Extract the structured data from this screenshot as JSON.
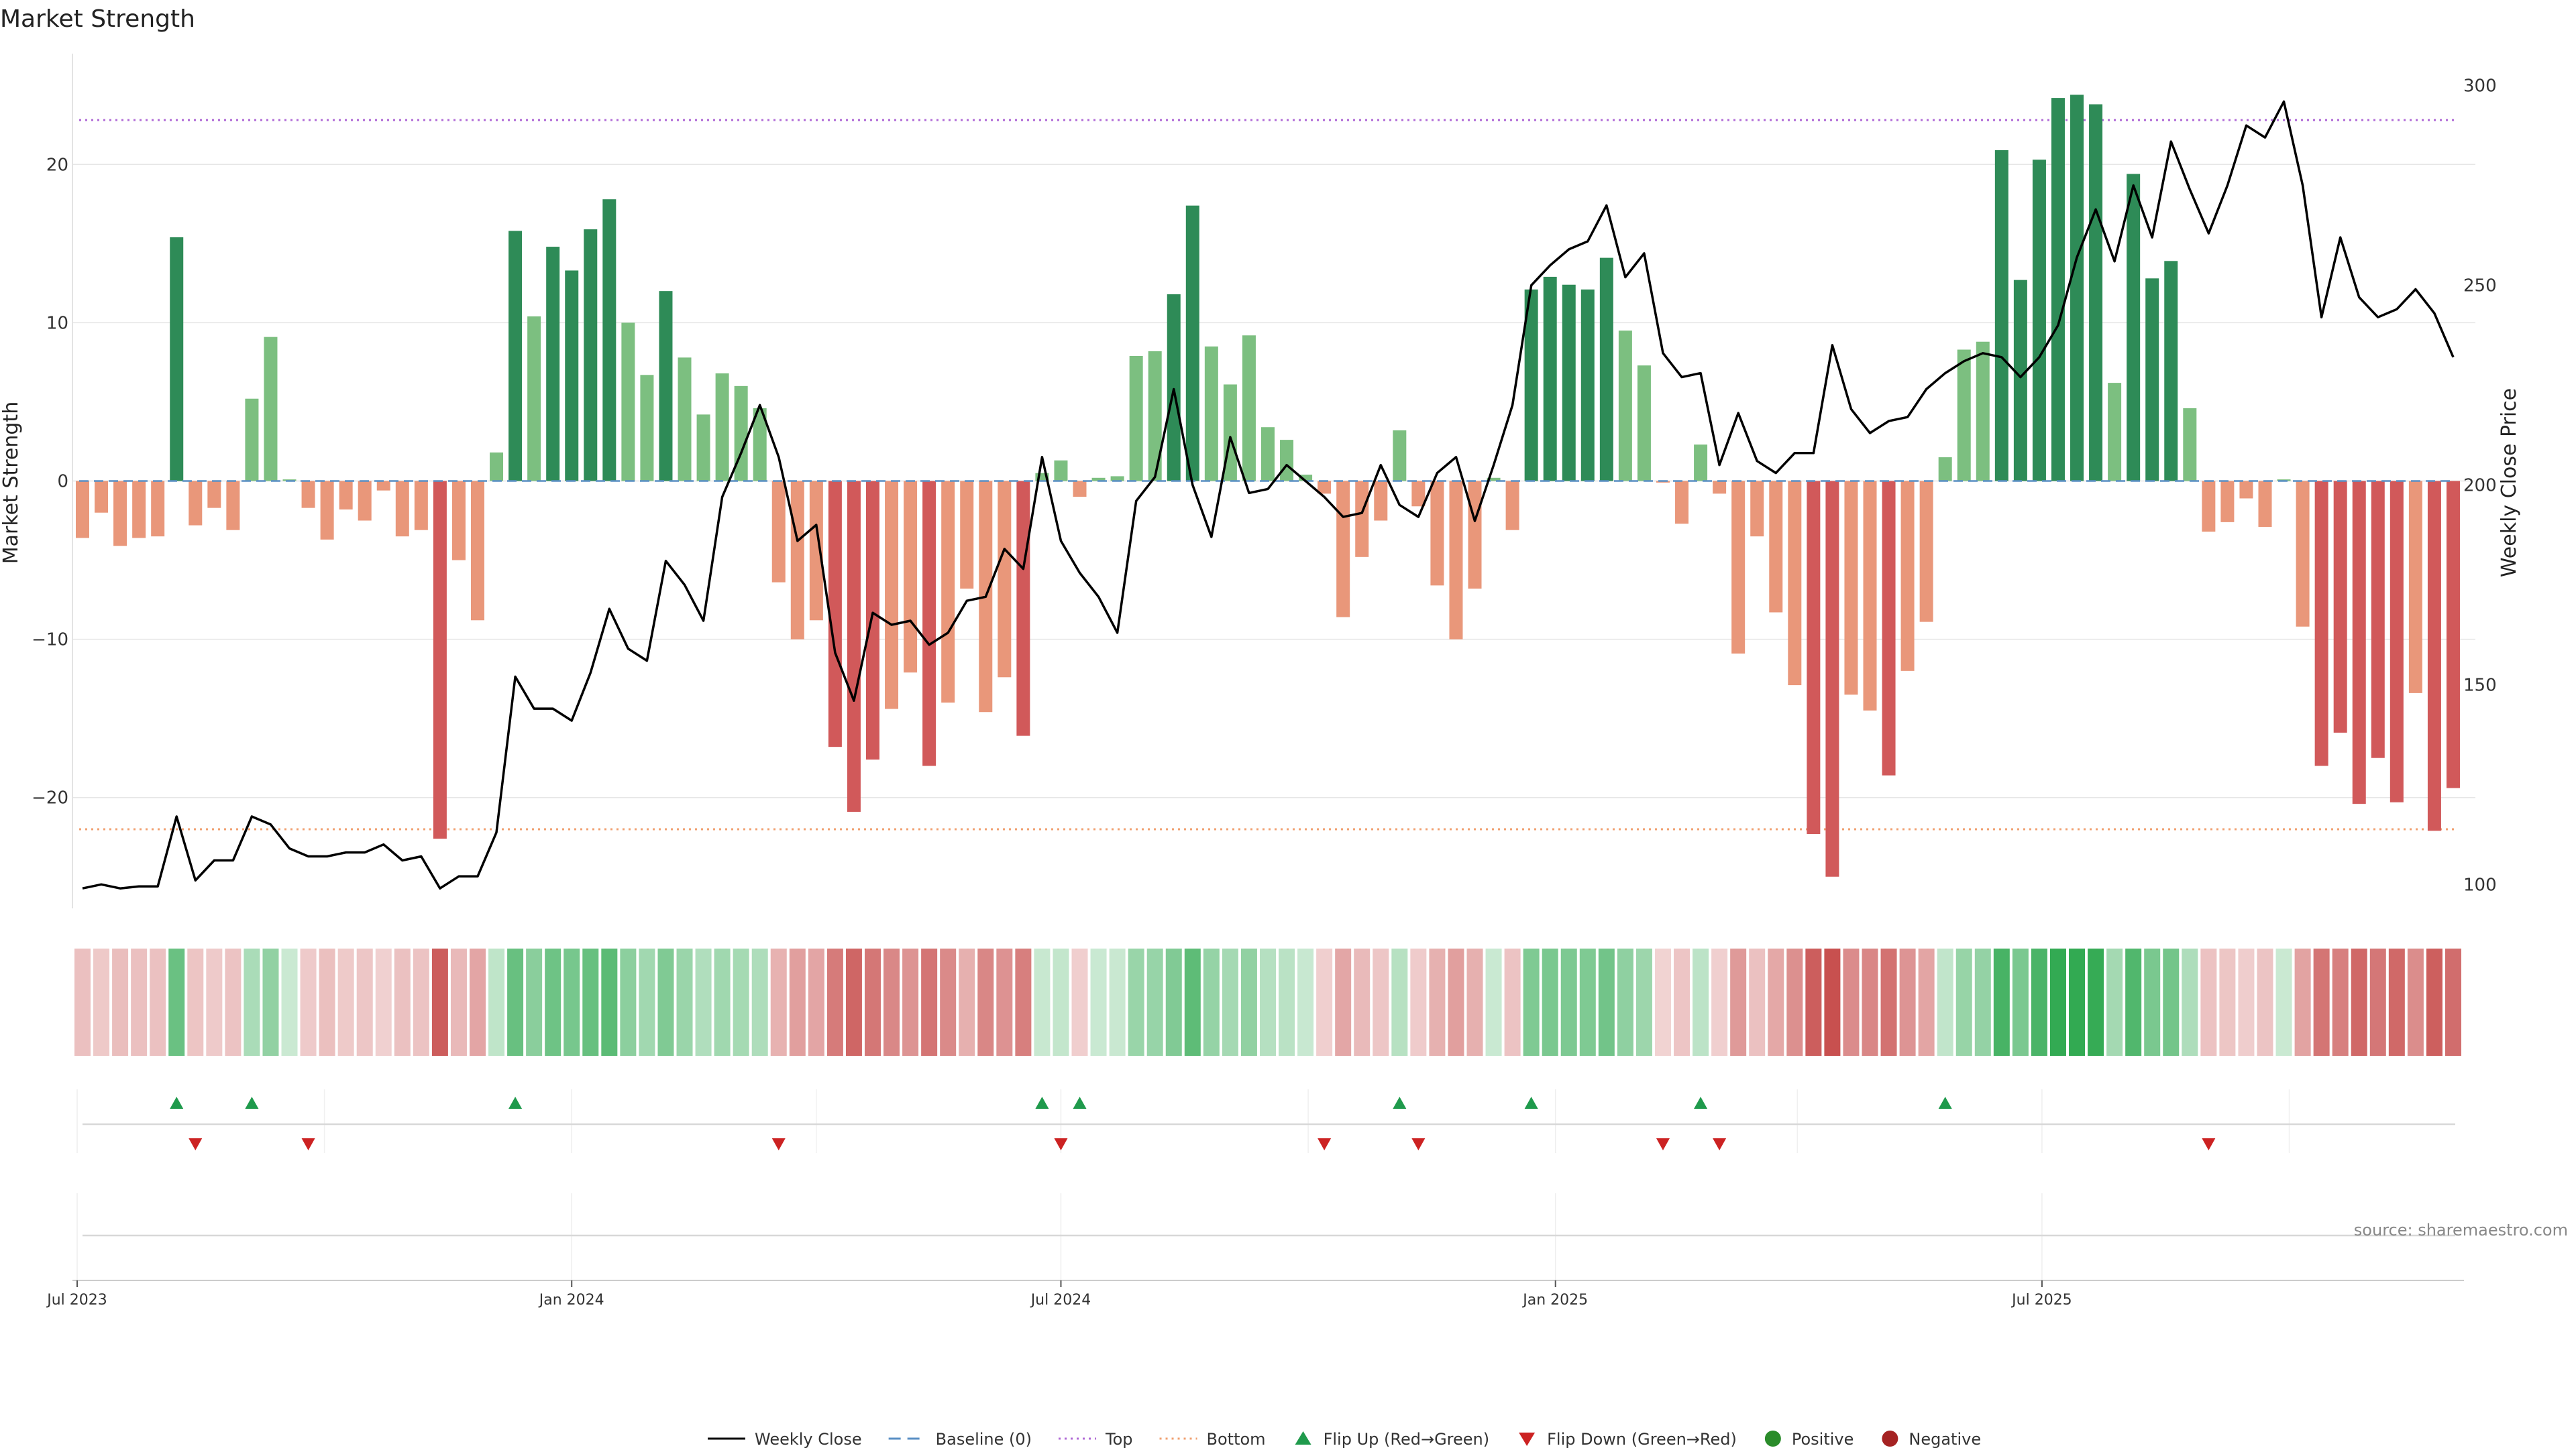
{
  "chart_data": {
    "type": "bar",
    "title": "Market Strength",
    "ylabel": "Market Strength",
    "y2label": "Weekly Close Price",
    "ylim": [
      -27,
      27
    ],
    "y2lim": [
      94,
      308
    ],
    "yticks": [
      -20,
      -10,
      0,
      10,
      20
    ],
    "ytick_labels": [
      "−20",
      "−10",
      "0",
      "10",
      "20"
    ],
    "y2ticks": [
      100,
      150,
      200,
      250,
      300
    ],
    "y2tick_labels": [
      "100",
      "150",
      "200",
      "250",
      "300"
    ],
    "x_start": "2023-07-03",
    "x_end": "2025-12-05",
    "xticks": [
      "2023-07-01",
      "2024-01-01",
      "2024-07-01",
      "2025-01-01",
      "2025-07-01"
    ],
    "xtick_labels": [
      "Jul 2023",
      "Jan 2024",
      "Jul 2024",
      "Jan 2025",
      "Jul 2025"
    ],
    "top_level": 22.8,
    "bottom_level": -22,
    "weeks": [
      {
        "date": "2023-07-03",
        "strength": -3.6,
        "close": 99
      },
      {
        "date": "2023-07-10",
        "strength": -2.0,
        "close": 100
      },
      {
        "date": "2023-07-17",
        "strength": -4.1,
        "close": 99
      },
      {
        "date": "2023-07-24",
        "strength": -3.6,
        "close": 99.5
      },
      {
        "date": "2023-07-31",
        "strength": -3.5,
        "close": 99.5
      },
      {
        "date": "2023-08-07",
        "strength": 15.4,
        "close": 117
      },
      {
        "date": "2023-08-14",
        "strength": -2.8,
        "close": 101
      },
      {
        "date": "2023-08-21",
        "strength": -1.7,
        "close": 106
      },
      {
        "date": "2023-08-28",
        "strength": -3.1,
        "close": 106
      },
      {
        "date": "2023-09-04",
        "strength": 5.2,
        "close": 117
      },
      {
        "date": "2023-09-11",
        "strength": 9.1,
        "close": 115
      },
      {
        "date": "2023-09-18",
        "strength": 0.1,
        "close": 109
      },
      {
        "date": "2023-09-25",
        "strength": -1.7,
        "close": 107
      },
      {
        "date": "2023-10-02",
        "strength": -3.7,
        "close": 107
      },
      {
        "date": "2023-10-09",
        "strength": -1.8,
        "close": 108
      },
      {
        "date": "2023-10-16",
        "strength": -2.5,
        "close": 108
      },
      {
        "date": "2023-10-23",
        "strength": -0.6,
        "close": 110
      },
      {
        "date": "2023-10-30",
        "strength": -3.5,
        "close": 106
      },
      {
        "date": "2023-11-06",
        "strength": -3.1,
        "close": 107
      },
      {
        "date": "2023-11-13",
        "strength": -22.6,
        "close": 99
      },
      {
        "date": "2023-11-20",
        "strength": -5.0,
        "close": 102
      },
      {
        "date": "2023-11-27",
        "strength": -8.8,
        "close": 102
      },
      {
        "date": "2023-12-04",
        "strength": 1.8,
        "close": 113
      },
      {
        "date": "2023-12-11",
        "strength": 15.8,
        "close": 152
      },
      {
        "date": "2023-12-18",
        "strength": 10.4,
        "close": 144
      },
      {
        "date": "2023-12-25",
        "strength": 14.8,
        "close": 144
      },
      {
        "date": "2024-01-01",
        "strength": 13.3,
        "close": 141
      },
      {
        "date": "2024-01-08",
        "strength": 15.9,
        "close": 153
      },
      {
        "date": "2024-01-15",
        "strength": 17.8,
        "close": 169
      },
      {
        "date": "2024-01-22",
        "strength": 10.0,
        "close": 159
      },
      {
        "date": "2024-01-29",
        "strength": 6.7,
        "close": 156
      },
      {
        "date": "2024-02-05",
        "strength": 12.0,
        "close": 181
      },
      {
        "date": "2024-02-12",
        "strength": 7.8,
        "close": 175
      },
      {
        "date": "2024-02-19",
        "strength": 4.2,
        "close": 166
      },
      {
        "date": "2024-02-26",
        "strength": 6.8,
        "close": 197
      },
      {
        "date": "2024-03-04",
        "strength": 6.0,
        "close": 208
      },
      {
        "date": "2024-03-11",
        "strength": 4.6,
        "close": 220
      },
      {
        "date": "2024-03-18",
        "strength": -6.4,
        "close": 207
      },
      {
        "date": "2024-03-25",
        "strength": -10.0,
        "close": 186
      },
      {
        "date": "2024-04-01",
        "strength": -8.8,
        "close": 190
      },
      {
        "date": "2024-04-08",
        "strength": -16.8,
        "close": 158
      },
      {
        "date": "2024-04-15",
        "strength": -20.9,
        "close": 146
      },
      {
        "date": "2024-04-22",
        "strength": -17.6,
        "close": 168
      },
      {
        "date": "2024-04-29",
        "strength": -14.4,
        "close": 165
      },
      {
        "date": "2024-05-06",
        "strength": -12.1,
        "close": 166
      },
      {
        "date": "2024-05-13",
        "strength": -18.0,
        "close": 160
      },
      {
        "date": "2024-05-20",
        "strength": -14.0,
        "close": 163
      },
      {
        "date": "2024-05-27",
        "strength": -6.8,
        "close": 171
      },
      {
        "date": "2024-06-03",
        "strength": -14.6,
        "close": 172
      },
      {
        "date": "2024-06-10",
        "strength": -12.4,
        "close": 184
      },
      {
        "date": "2024-06-17",
        "strength": -16.1,
        "close": 179
      },
      {
        "date": "2024-06-24",
        "strength": 0.5,
        "close": 207
      },
      {
        "date": "2024-07-01",
        "strength": 1.3,
        "close": 186
      },
      {
        "date": "2024-07-08",
        "strength": -1.0,
        "close": 178
      },
      {
        "date": "2024-07-15",
        "strength": 0.2,
        "close": 172
      },
      {
        "date": "2024-07-22",
        "strength": 0.3,
        "close": 163
      },
      {
        "date": "2024-07-29",
        "strength": 7.9,
        "close": 196
      },
      {
        "date": "2024-08-05",
        "strength": 8.2,
        "close": 202
      },
      {
        "date": "2024-08-12",
        "strength": 11.8,
        "close": 224
      },
      {
        "date": "2024-08-19",
        "strength": 17.4,
        "close": 200
      },
      {
        "date": "2024-08-26",
        "strength": 8.5,
        "close": 187
      },
      {
        "date": "2024-09-02",
        "strength": 6.1,
        "close": 212
      },
      {
        "date": "2024-09-09",
        "strength": 9.2,
        "close": 198
      },
      {
        "date": "2024-09-16",
        "strength": 3.4,
        "close": 199
      },
      {
        "date": "2024-09-23",
        "strength": 2.6,
        "close": 205
      },
      {
        "date": "2024-09-30",
        "strength": 0.4,
        "close": 201
      },
      {
        "date": "2024-10-07",
        "strength": -0.8,
        "close": 197
      },
      {
        "date": "2024-10-14",
        "strength": -8.6,
        "close": 192
      },
      {
        "date": "2024-10-21",
        "strength": -4.8,
        "close": 193
      },
      {
        "date": "2024-10-28",
        "strength": -2.5,
        "close": 205
      },
      {
        "date": "2024-11-04",
        "strength": 3.2,
        "close": 195
      },
      {
        "date": "2024-11-11",
        "strength": -1.6,
        "close": 192
      },
      {
        "date": "2024-11-18",
        "strength": -6.6,
        "close": 203
      },
      {
        "date": "2024-11-25",
        "strength": -10.0,
        "close": 207
      },
      {
        "date": "2024-12-02",
        "strength": -6.8,
        "close": 191
      },
      {
        "date": "2024-12-09",
        "strength": 0.2,
        "close": 205
      },
      {
        "date": "2024-12-16",
        "strength": -3.1,
        "close": 220
      },
      {
        "date": "2024-12-23",
        "strength": 12.1,
        "close": 250
      },
      {
        "date": "2024-12-30",
        "strength": 12.9,
        "close": 255
      },
      {
        "date": "2025-01-06",
        "strength": 12.4,
        "close": 259
      },
      {
        "date": "2025-01-13",
        "strength": 12.1,
        "close": 261
      },
      {
        "date": "2025-01-20",
        "strength": 14.1,
        "close": 270
      },
      {
        "date": "2025-01-27",
        "strength": 9.5,
        "close": 252
      },
      {
        "date": "2025-02-03",
        "strength": 7.3,
        "close": 258
      },
      {
        "date": "2025-02-10",
        "strength": -0.1,
        "close": 233
      },
      {
        "date": "2025-02-17",
        "strength": -2.7,
        "close": 227
      },
      {
        "date": "2025-02-24",
        "strength": 2.3,
        "close": 228
      },
      {
        "date": "2025-03-03",
        "strength": -0.8,
        "close": 205
      },
      {
        "date": "2025-03-10",
        "strength": -10.9,
        "close": 218
      },
      {
        "date": "2025-03-17",
        "strength": -3.5,
        "close": 206
      },
      {
        "date": "2025-03-24",
        "strength": -8.3,
        "close": 203
      },
      {
        "date": "2025-03-31",
        "strength": -12.9,
        "close": 208
      },
      {
        "date": "2025-04-07",
        "strength": -22.3,
        "close": 208
      },
      {
        "date": "2025-04-14",
        "strength": -25.0,
        "close": 235
      },
      {
        "date": "2025-04-21",
        "strength": -13.5,
        "close": 219
      },
      {
        "date": "2025-04-28",
        "strength": -14.5,
        "close": 213
      },
      {
        "date": "2025-05-05",
        "strength": -18.6,
        "close": 216
      },
      {
        "date": "2025-05-12",
        "strength": -12.0,
        "close": 217
      },
      {
        "date": "2025-05-19",
        "strength": -8.9,
        "close": 224
      },
      {
        "date": "2025-05-26",
        "strength": 1.5,
        "close": 228
      },
      {
        "date": "2025-06-02",
        "strength": 8.3,
        "close": 231
      },
      {
        "date": "2025-06-09",
        "strength": 8.8,
        "close": 233
      },
      {
        "date": "2025-06-16",
        "strength": 20.9,
        "close": 232
      },
      {
        "date": "2025-06-23",
        "strength": 12.7,
        "close": 227
      },
      {
        "date": "2025-06-30",
        "strength": 20.3,
        "close": 232
      },
      {
        "date": "2025-07-07",
        "strength": 24.2,
        "close": 240
      },
      {
        "date": "2025-07-14",
        "strength": 24.4,
        "close": 257
      },
      {
        "date": "2025-07-21",
        "strength": 23.8,
        "close": 269
      },
      {
        "date": "2025-07-28",
        "strength": 6.2,
        "close": 256
      },
      {
        "date": "2025-08-04",
        "strength": 19.4,
        "close": 275
      },
      {
        "date": "2025-08-11",
        "strength": 12.8,
        "close": 262
      },
      {
        "date": "2025-08-18",
        "strength": 13.9,
        "close": 286
      },
      {
        "date": "2025-08-25",
        "strength": 4.6,
        "close": 274
      },
      {
        "date": "2025-09-01",
        "strength": -3.2,
        "close": 263
      },
      {
        "date": "2025-09-08",
        "strength": -2.6,
        "close": 275
      },
      {
        "date": "2025-09-15",
        "strength": -1.1,
        "close": 290
      },
      {
        "date": "2025-09-22",
        "strength": -2.9,
        "close": 287
      },
      {
        "date": "2025-09-29",
        "strength": 0.1,
        "close": 296
      },
      {
        "date": "2025-10-06",
        "strength": -9.2,
        "close": 275
      },
      {
        "date": "2025-10-13",
        "strength": -18.0,
        "close": 242
      },
      {
        "date": "2025-10-20",
        "strength": -15.9,
        "close": 262
      },
      {
        "date": "2025-10-27",
        "strength": -20.4,
        "close": 247
      },
      {
        "date": "2025-11-03",
        "strength": -17.5,
        "close": 242
      },
      {
        "date": "2025-11-10",
        "strength": -20.3,
        "close": 244
      },
      {
        "date": "2025-11-17",
        "strength": -13.4,
        "close": 249
      },
      {
        "date": "2025-11-24",
        "strength": -22.1,
        "close": 243
      },
      {
        "date": "2025-12-01",
        "strength": -19.4,
        "close": 232
      }
    ],
    "flip_up_dates": [
      "2023-08-07",
      "2023-09-04",
      "2023-12-11",
      "2024-06-24",
      "2024-07-08",
      "2024-11-04",
      "2024-12-23",
      "2025-02-24",
      "2025-05-26"
    ],
    "flip_down_dates": [
      "2023-08-14",
      "2023-09-25",
      "2024-03-18",
      "2024-07-01",
      "2024-10-07",
      "2024-11-11",
      "2025-02-10",
      "2025-03-03",
      "2025-09-01"
    ],
    "colors": {
      "strong_positive": "#2e8b57",
      "weak_positive": "#7cbf80",
      "strong_negative": "#d1595a",
      "weak_negative": "#e9977a",
      "line": "#000000",
      "baseline": "#5a8fc4",
      "top": "#b06ad6",
      "bottom": "#f0a070",
      "flip_up": "#1f9a4c",
      "flip_down": "#cc2222",
      "positive_dot": "#2a8c2a",
      "negative_dot": "#a52222"
    },
    "legend": [
      {
        "key": "weekly_close",
        "label": "Weekly Close"
      },
      {
        "key": "baseline",
        "label": "Baseline (0)"
      },
      {
        "key": "top",
        "label": "Top"
      },
      {
        "key": "bottom",
        "label": "Bottom"
      },
      {
        "key": "flip_up",
        "label": "Flip Up (Red→Green)"
      },
      {
        "key": "flip_down",
        "label": "Flip Down (Green→Red)"
      },
      {
        "key": "positive",
        "label": "Positive"
      },
      {
        "key": "negative",
        "label": "Negative"
      }
    ],
    "legend_position": "bottom-center",
    "source": "source: sharemaestro.com"
  }
}
